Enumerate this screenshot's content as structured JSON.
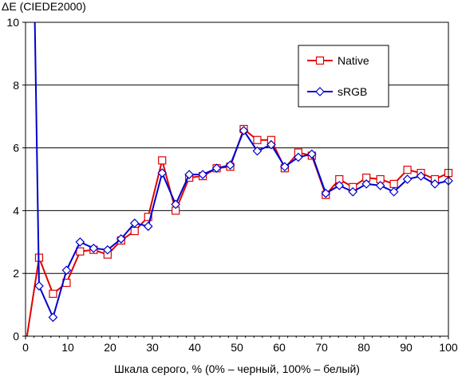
{
  "chart_data": {
    "type": "line",
    "title": "",
    "xlabel": "Шкала серого, % (0% – черный, 100% – белый)",
    "ylabel": "ΔE (CIEDE2000)",
    "xlim": [
      0,
      100
    ],
    "ylim": [
      0,
      10
    ],
    "xticks": [
      0,
      10,
      20,
      30,
      40,
      50,
      60,
      70,
      80,
      90,
      100
    ],
    "yticks": [
      0,
      2,
      4,
      6,
      8,
      10
    ],
    "grid": "horizontal",
    "legend_position": "top-right",
    "series": [
      {
        "name": "Native",
        "color": "#e00000",
        "marker": "square",
        "x": [
          0,
          3.2,
          6.5,
          9.7,
          12.9,
          16.1,
          19.4,
          22.6,
          25.8,
          29,
          32.3,
          35.5,
          38.7,
          41.9,
          45.2,
          48.4,
          51.6,
          54.8,
          58.1,
          61.3,
          64.5,
          67.7,
          71,
          74.2,
          77.4,
          80.6,
          83.9,
          87.1,
          90.3,
          93.5,
          96.8,
          100
        ],
        "y": [
          -0.3,
          2.5,
          1.35,
          1.7,
          2.7,
          2.75,
          2.6,
          3.05,
          3.35,
          3.8,
          5.6,
          4.0,
          5.05,
          5.1,
          5.35,
          5.4,
          6.6,
          6.25,
          6.25,
          5.35,
          5.85,
          5.75,
          4.5,
          5.0,
          4.75,
          5.05,
          5.0,
          4.85,
          5.3,
          5.2,
          5.0,
          5.2
        ]
      },
      {
        "name": "sRGB",
        "color": "#0000d0",
        "marker": "diamond",
        "x": [
          2.2,
          3.2,
          6.5,
          9.7,
          12.9,
          16.1,
          19.4,
          22.6,
          25.8,
          29,
          32.3,
          35.5,
          38.7,
          41.9,
          45.2,
          48.4,
          51.6,
          54.8,
          58.1,
          61.3,
          64.5,
          67.7,
          71,
          74.2,
          77.4,
          80.6,
          83.9,
          87.1,
          90.3,
          93.5,
          96.8,
          100
        ],
        "y": [
          10,
          1.6,
          0.6,
          2.1,
          3.0,
          2.8,
          2.75,
          3.1,
          3.6,
          3.5,
          5.2,
          4.2,
          5.15,
          5.15,
          5.35,
          5.45,
          6.55,
          5.9,
          6.1,
          5.4,
          5.7,
          5.8,
          4.55,
          4.8,
          4.6,
          4.85,
          4.8,
          4.6,
          5.0,
          5.1,
          4.85,
          4.95
        ]
      }
    ]
  }
}
